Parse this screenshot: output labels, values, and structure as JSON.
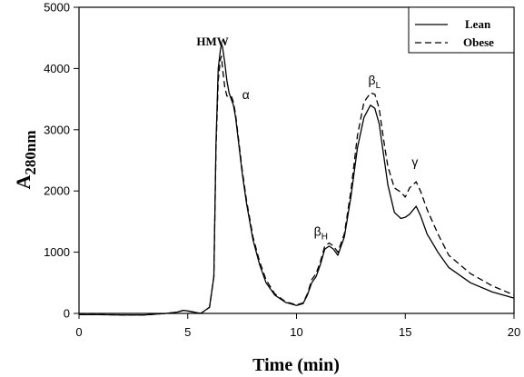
{
  "chart_data": {
    "type": "line",
    "title": "",
    "xlabel": "Time (min)",
    "ylabel_main": "A",
    "ylabel_sub": "280nm",
    "xlim": [
      0,
      20
    ],
    "ylim": [
      0,
      5000
    ],
    "xticks": [
      0,
      5,
      10,
      15,
      20
    ],
    "yticks": [
      0,
      1000,
      2000,
      3000,
      4000,
      5000
    ],
    "grid": false,
    "legend_position": "top-right",
    "series": [
      {
        "name": "Lean",
        "style": "solid",
        "color": "#000000",
        "x": [
          0,
          1,
          2,
          3,
          4,
          4.5,
          4.8,
          5.0,
          5.3,
          5.6,
          6.0,
          6.2,
          6.3,
          6.4,
          6.5,
          6.55,
          6.6,
          6.7,
          6.8,
          6.9,
          7.0,
          7.1,
          7.2,
          7.3,
          7.5,
          7.7,
          8.0,
          8.3,
          8.6,
          9.0,
          9.5,
          10.0,
          10.3,
          10.5,
          10.7,
          10.9,
          11.1,
          11.3,
          11.5,
          11.7,
          11.9,
          12.2,
          12.5,
          12.8,
          13.1,
          13.4,
          13.6,
          13.8,
          14.0,
          14.2,
          14.5,
          14.8,
          15.0,
          15.2,
          15.5,
          15.7,
          16.0,
          16.5,
          17.0,
          18.0,
          19.0,
          20.0
        ],
        "y": [
          -20,
          -20,
          -25,
          -25,
          0,
          20,
          50,
          40,
          20,
          0,
          100,
          600,
          2800,
          4000,
          4300,
          4400,
          4350,
          4100,
          3800,
          3600,
          3500,
          3400,
          3200,
          2900,
          2300,
          1800,
          1200,
          800,
          500,
          300,
          180,
          130,
          160,
          300,
          500,
          600,
          800,
          1050,
          1100,
          1050,
          950,
          1250,
          1900,
          2700,
          3200,
          3400,
          3350,
          3100,
          2600,
          2100,
          1650,
          1550,
          1570,
          1620,
          1750,
          1600,
          1300,
          1000,
          750,
          500,
          350,
          250
        ]
      },
      {
        "name": "Obese",
        "style": "dashed",
        "color": "#000000",
        "x": [
          0,
          1,
          2,
          3,
          4,
          4.5,
          4.8,
          5.0,
          5.3,
          5.6,
          6.0,
          6.2,
          6.3,
          6.4,
          6.5,
          6.55,
          6.6,
          6.7,
          6.8,
          6.9,
          7.0,
          7.1,
          7.2,
          7.3,
          7.5,
          7.7,
          8.0,
          8.3,
          8.6,
          9.0,
          9.5,
          10.0,
          10.3,
          10.5,
          10.7,
          10.9,
          11.1,
          11.3,
          11.5,
          11.7,
          11.9,
          12.2,
          12.5,
          12.8,
          13.1,
          13.4,
          13.6,
          13.8,
          14.0,
          14.2,
          14.5,
          14.8,
          15.0,
          15.2,
          15.5,
          15.7,
          16.0,
          16.5,
          17.0,
          18.0,
          19.0,
          20.0
        ],
        "y": [
          -20,
          -20,
          -25,
          -25,
          0,
          20,
          50,
          40,
          20,
          0,
          100,
          600,
          2700,
          3800,
          4150,
          4200,
          4000,
          3700,
          3550,
          3550,
          3550,
          3450,
          3250,
          2950,
          2350,
          1850,
          1250,
          850,
          550,
          320,
          190,
          140,
          170,
          320,
          550,
          650,
          850,
          1100,
          1150,
          1100,
          1000,
          1300,
          2000,
          2900,
          3450,
          3600,
          3580,
          3350,
          2850,
          2400,
          2050,
          1980,
          1900,
          2050,
          2150,
          2000,
          1700,
          1300,
          950,
          650,
          450,
          300
        ]
      }
    ],
    "annotations": [
      {
        "text": "HMW",
        "x": 5.4,
        "y": 4380,
        "style": "bold"
      },
      {
        "text": "α",
        "x": 7.5,
        "y": 3500,
        "style": "normal"
      },
      {
        "text": "β",
        "sub": "H",
        "x": 10.8,
        "y": 1270,
        "style": "normal"
      },
      {
        "text": "β",
        "sub": "L",
        "x": 13.3,
        "y": 3740,
        "style": "normal"
      },
      {
        "text": "γ",
        "x": 15.3,
        "y": 2400,
        "style": "normal"
      }
    ]
  }
}
